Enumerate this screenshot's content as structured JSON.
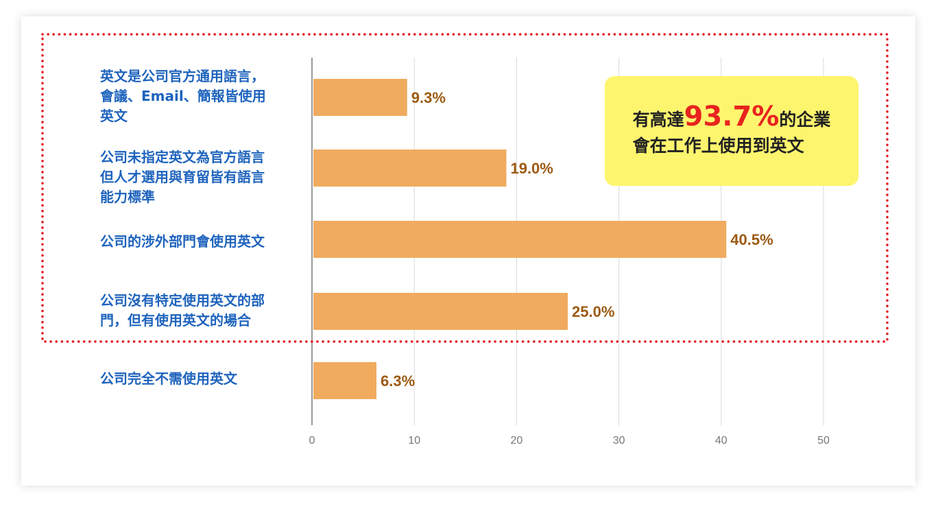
{
  "chart_data": {
    "type": "bar",
    "orientation": "horizontal",
    "categories": [
      "英文是公司官方通用語言，\n會議、Email、簡報皆使用\n英文",
      "公司未指定英文為官方語言\n但人才選用與育留皆有語言\n能力標準",
      "公司的涉外部門會使用英文",
      "公司沒有特定使用英文的部\n門，但有使用英文的場合",
      "公司完全不需使用英文"
    ],
    "values": [
      9.3,
      19.0,
      40.5,
      25.0,
      6.3
    ],
    "data_labels": [
      "9.3%",
      "19.0%",
      "40.5%",
      "25.0%",
      "6.3%"
    ],
    "x_ticks": [
      "0",
      "10",
      "20",
      "30",
      "40",
      "50"
    ],
    "xlim": [
      0,
      50
    ],
    "grid": true,
    "title": "",
    "xlabel": "",
    "ylabel": "",
    "colors": {
      "bar": "#f0ab5f",
      "data_label": "#9c5a12",
      "category_label": "#1e63bd",
      "highlight_border": "#e3141e"
    }
  },
  "callout": {
    "prefix": "有高達",
    "highlight": "93.7%",
    "suffix_line1": "的企業",
    "line2": "會在工作上使用到英文",
    "background": "#fef56e",
    "highlight_color": "#e8231e"
  }
}
